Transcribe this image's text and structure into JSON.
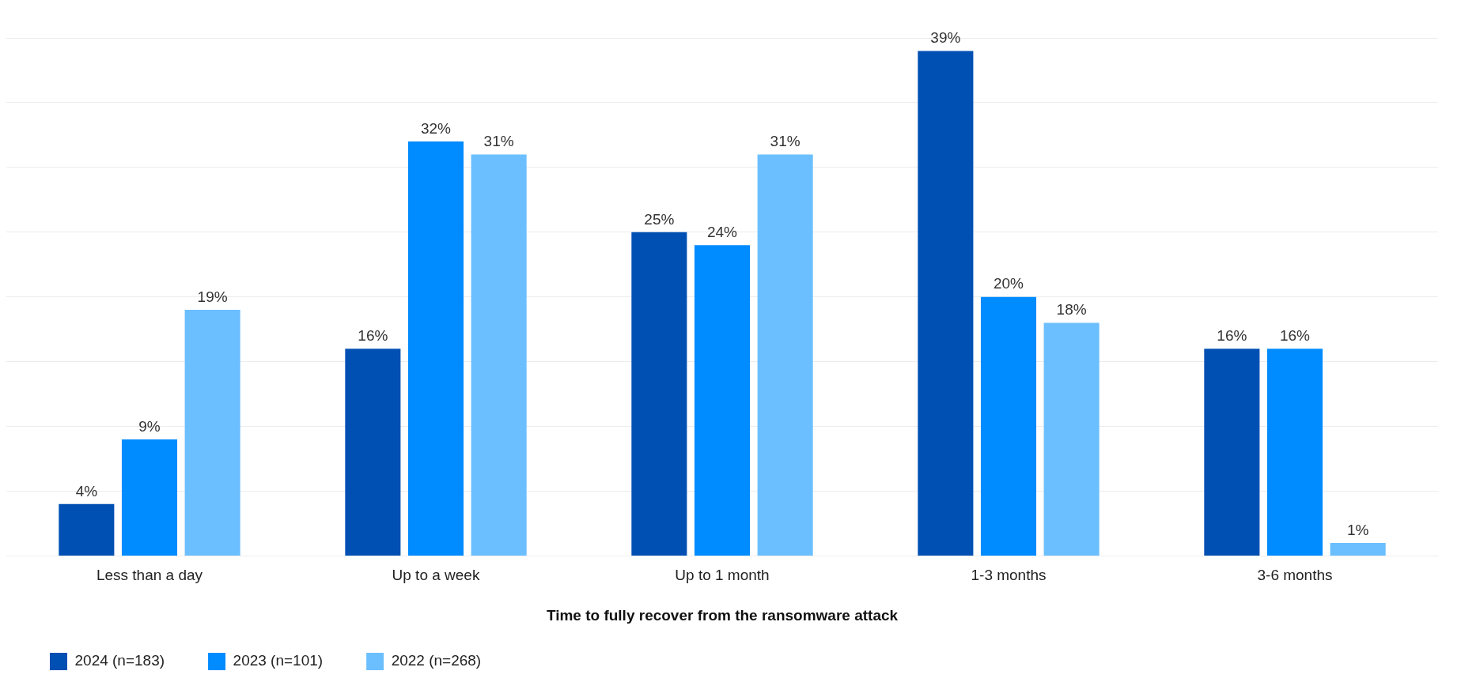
{
  "chart_data": {
    "type": "bar",
    "xlabel": "Time to fully recover from the ransomware attack",
    "categories": [
      "Less than a day",
      "Up to a week",
      "Up to 1 month",
      "1-3 months",
      "3-6 months"
    ],
    "series": [
      {
        "name": "2024 (n=183)",
        "color": "#0050b4",
        "values": [
          4,
          16,
          25,
          39,
          16
        ],
        "value_labels": [
          "4%",
          "16%",
          "25%",
          "39%",
          "16%"
        ]
      },
      {
        "name": "2023 (n=101)",
        "color": "#008bff",
        "values": [
          9,
          32,
          24,
          20,
          16
        ],
        "value_labels": [
          "9%",
          "32%",
          "24%",
          "20%",
          "16%"
        ]
      },
      {
        "name": "2022 (n=268)",
        "color": "#6bbfff",
        "values": [
          19,
          31,
          31,
          18,
          1
        ],
        "value_labels": [
          "19%",
          "31%",
          "31%",
          "18%",
          "1%"
        ]
      }
    ],
    "grid": "y",
    "legend": "bottom left",
    "tick_labels": "x"
  }
}
